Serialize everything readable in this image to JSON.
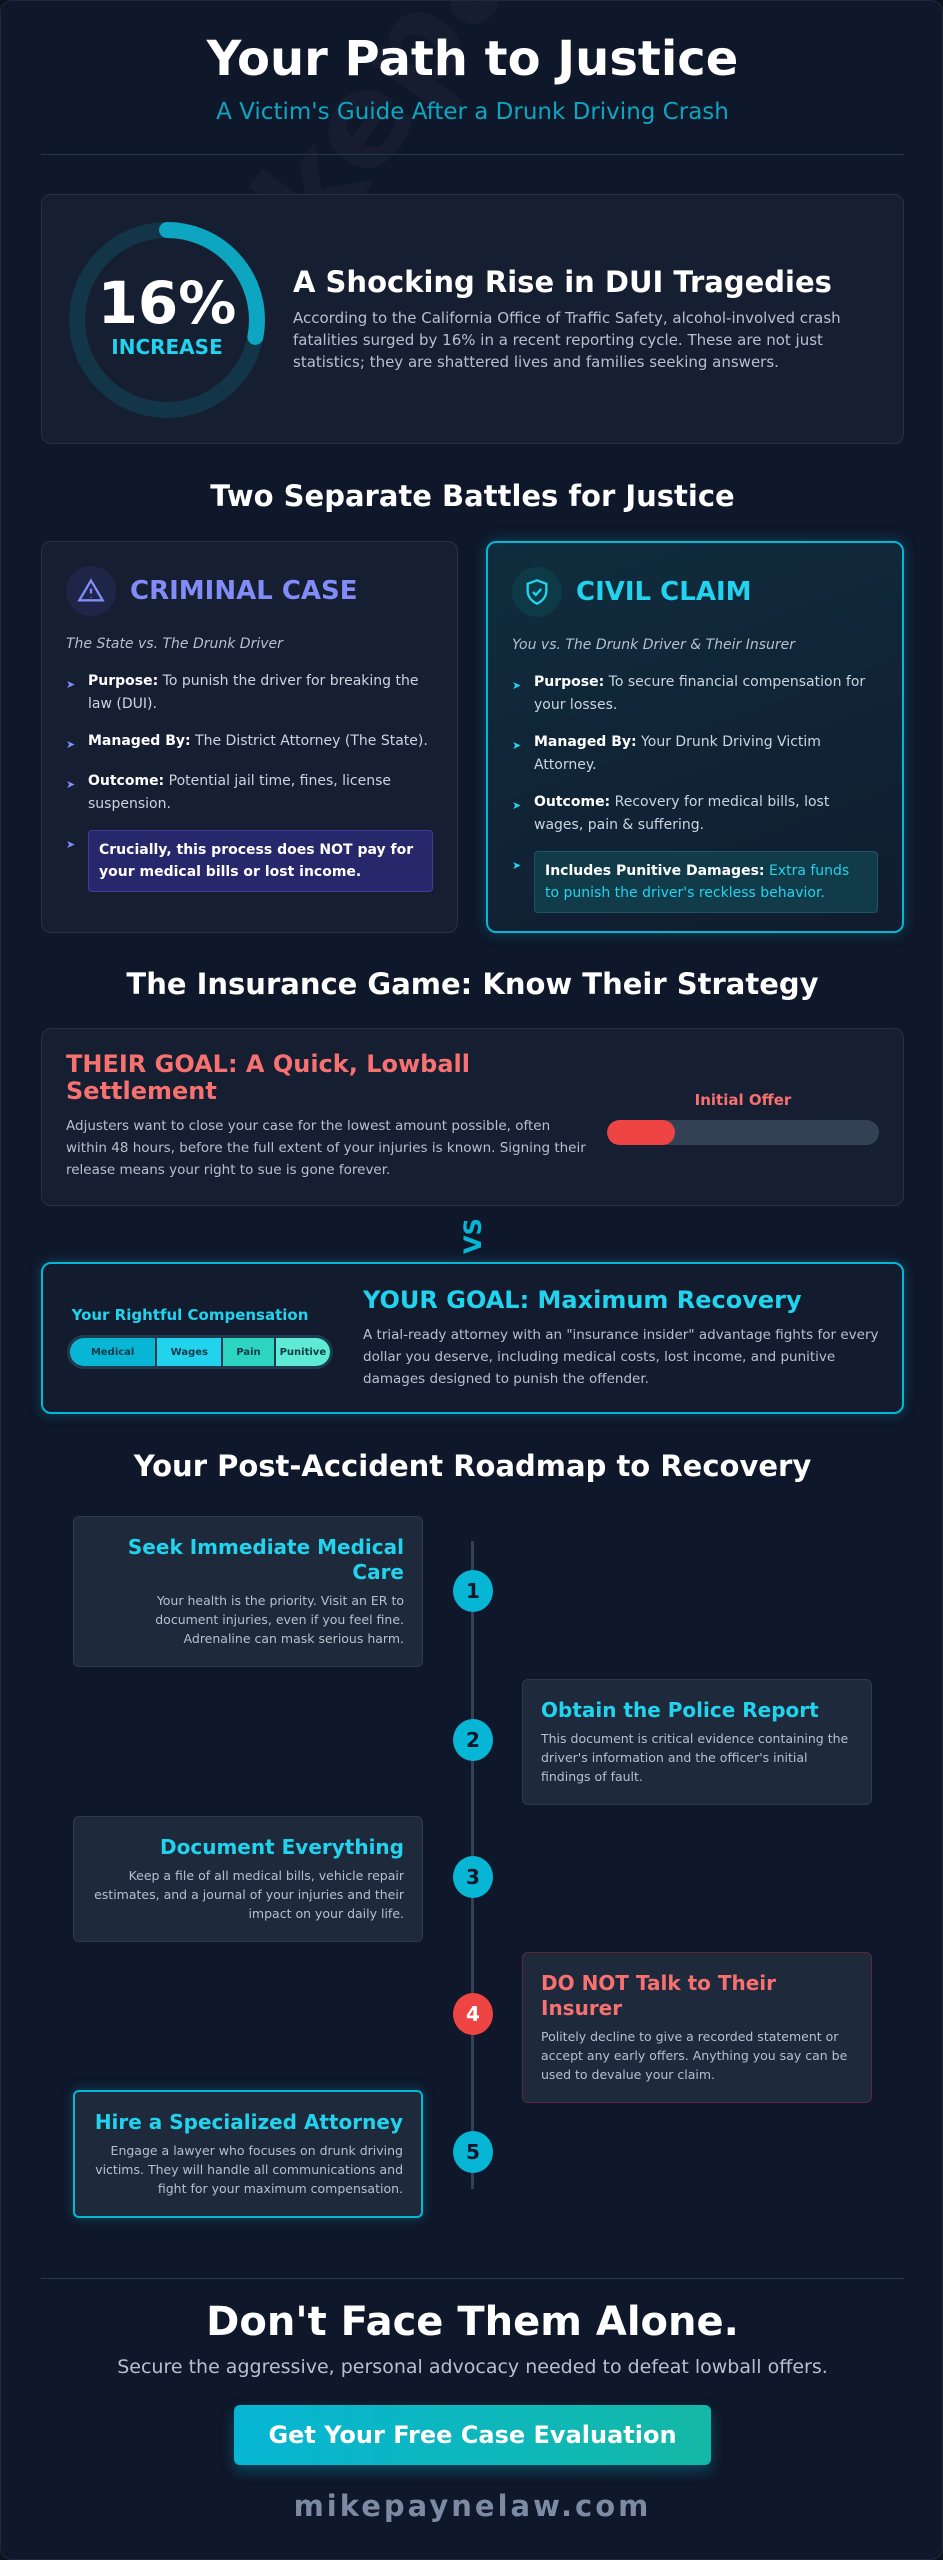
{
  "watermark": "mikepaynelaw.com",
  "header": {
    "title": "Your Path to Justice",
    "subtitle": "A Victim's Guide After a Drunk Driving Crash"
  },
  "stat": {
    "value": "16%",
    "label": "INCREASE",
    "progress_percent": 16,
    "title": "A Shocking Rise in DUI Tragedies",
    "body": "According to the California Office of Traffic Safety, alcohol-involved crash fatalities surged by 16% in a recent reporting cycle. These are not just statistics; they are shattered lives and families seeking answers."
  },
  "battles": {
    "title": "Two Separate Battles for Justice",
    "criminal": {
      "icon": "warning-triangle-icon",
      "title": "CRIMINAL CASE",
      "subtitle": "The State vs. The Drunk Driver",
      "items": [
        {
          "label": "Purpose:",
          "text": " To punish the driver for breaking the law (DUI)."
        },
        {
          "label": "Managed By:",
          "text": " The District Attorney (The State)."
        },
        {
          "label": "Outcome:",
          "text": " Potential jail time, fines, license suspension."
        }
      ],
      "callout": "Crucially, this process does NOT pay for your medical bills or lost income."
    },
    "civil": {
      "icon": "shield-check-icon",
      "title": "CIVIL CLAIM",
      "subtitle": "You vs. The Drunk Driver & Their Insurer",
      "items": [
        {
          "label": "Purpose:",
          "text": " To secure financial compensation for your losses."
        },
        {
          "label": "Managed By:",
          "text": " Your Drunk Driving Victim Attorney."
        },
        {
          "label": "Outcome:",
          "text": " Recovery for medical bills, lost wages, pain & suffering."
        }
      ],
      "callout_label": "Includes Punitive Damages:",
      "callout_text": " Extra funds to punish the driver's reckless behavior."
    }
  },
  "insurance": {
    "title": "The Insurance Game: Know Their Strategy",
    "their": {
      "title": "THEIR GOAL: A Quick, Lowball Settlement",
      "body": "Adjusters want to close your case for the lowest amount possible, often within 48 hours, before the full extent of your injuries is known. Signing their release means your right to sue is gone forever.",
      "bar_label": "Initial Offer",
      "offer_fraction": 0.25
    },
    "vs": "VS",
    "yours": {
      "title": "YOUR GOAL: Maximum Recovery",
      "body": "A trial-ready attorney with an \"insurance insider\" advantage fights for every dollar you deserve, including medical costs, lost income, and punitive damages designed to punish the offender.",
      "bar_label": "Your Rightful Compensation",
      "segments": [
        {
          "label": "Medical",
          "color": "#06b6d4"
        },
        {
          "label": "Wages",
          "color": "#22d3ee"
        },
        {
          "label": "Pain",
          "color": "#2dd4bf"
        },
        {
          "label": "Punitive",
          "color": "#5eead4"
        }
      ]
    }
  },
  "roadmap": {
    "title": "Your Post-Accident Roadmap to Recovery",
    "steps": [
      {
        "num": "1",
        "title": "Seek Immediate Medical Care",
        "body": "Your health is the priority. Visit an ER to document injuries, even if you feel fine. Adrenaline can mask serious harm."
      },
      {
        "num": "2",
        "title": "Obtain the Police Report",
        "body": "This document is critical evidence containing the driver's information and the officer's initial findings of fault."
      },
      {
        "num": "3",
        "title": "Document Everything",
        "body": "Keep a file of all medical bills, vehicle repair estimates, and a journal of your injuries and their impact on your daily life."
      },
      {
        "num": "4",
        "title": "DO NOT Talk to Their Insurer",
        "body": "Politely decline to give a recorded statement or accept any early offers. Anything you say can be used to devalue your claim."
      },
      {
        "num": "5",
        "title": "Hire a Specialized Attorney",
        "body": "Engage a lawyer who focuses on drunk driving victims. They will handle all communications and fight for your maximum compensation."
      }
    ]
  },
  "cta": {
    "title": "Don't Face Them Alone.",
    "subtitle": "Secure the aggressive, personal advocacy needed to defeat lowball offers.",
    "button": "Get Your Free Case Evaluation",
    "site": "mikepaynelaw.com"
  },
  "colors": {
    "accent": "#22d3ee",
    "criminal": "#818cf8",
    "danger": "#f87171",
    "background": "#0f172a"
  }
}
